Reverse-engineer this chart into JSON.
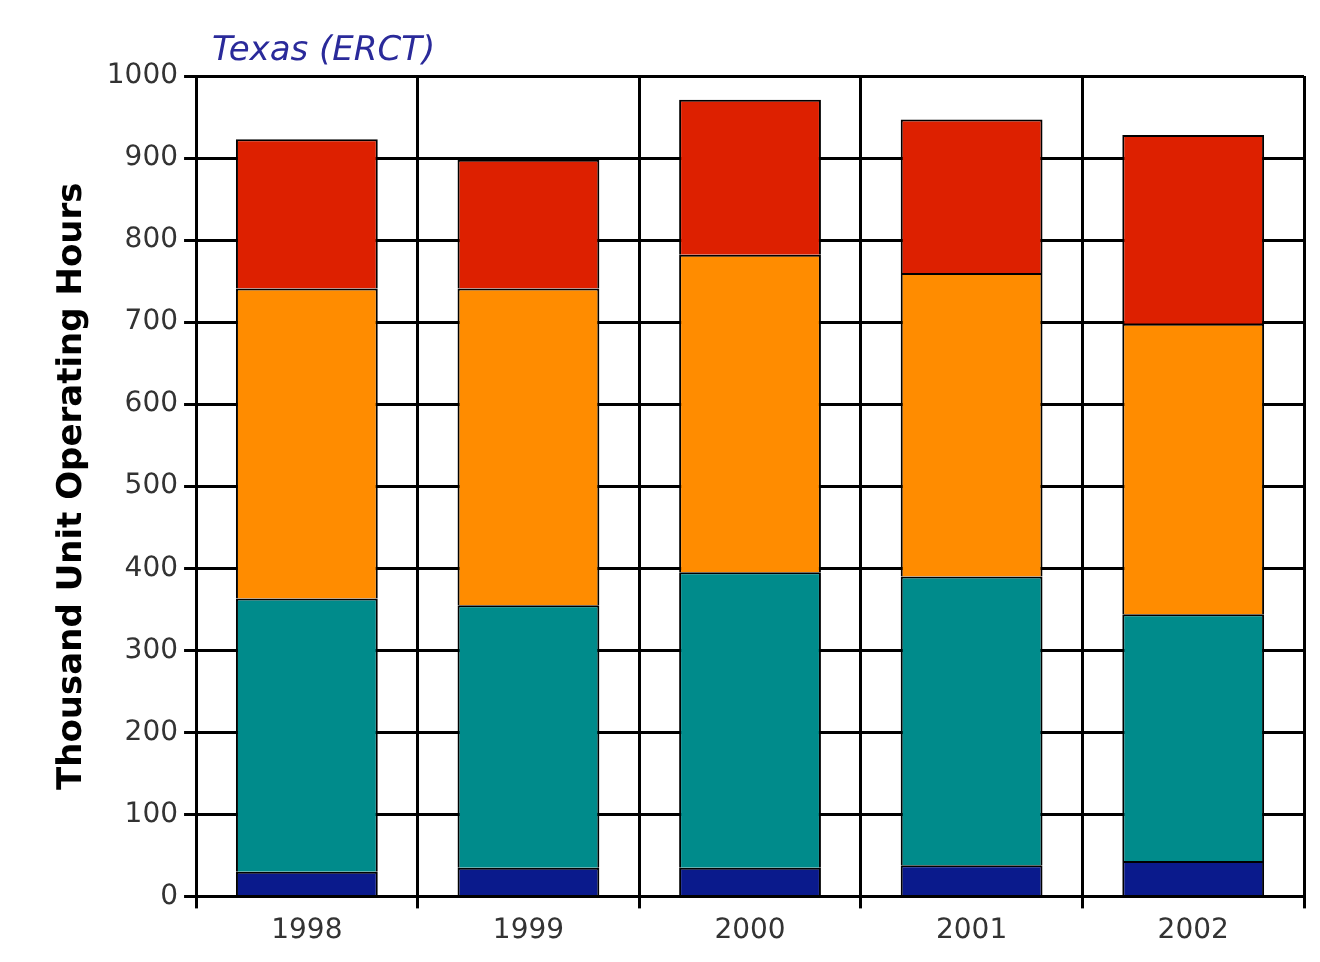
{
  "chart_data": {
    "type": "bar",
    "title": "Texas (ERCT)",
    "ylabel": "Thousand Unit Operating Hours",
    "categories": [
      "1998",
      "1999",
      "2000",
      "2001",
      "2002"
    ],
    "stacked": true,
    "series": [
      {
        "color": "#0a1a8c",
        "values": [
          30,
          35,
          35,
          38,
          43
        ]
      },
      {
        "color": "#008b8b",
        "values": [
          333,
          320,
          360,
          352,
          301
        ]
      },
      {
        "color": "#ff8c00",
        "values": [
          378,
          386,
          387,
          370,
          354
        ]
      },
      {
        "color": "#dd2000",
        "values": [
          182,
          157,
          189,
          187,
          230
        ]
      }
    ],
    "ylim": [
      0,
      1000
    ],
    "yticks": [
      0,
      100,
      200,
      300,
      400,
      500,
      600,
      700,
      800,
      900,
      1000
    ],
    "grid": true,
    "legend": false
  }
}
